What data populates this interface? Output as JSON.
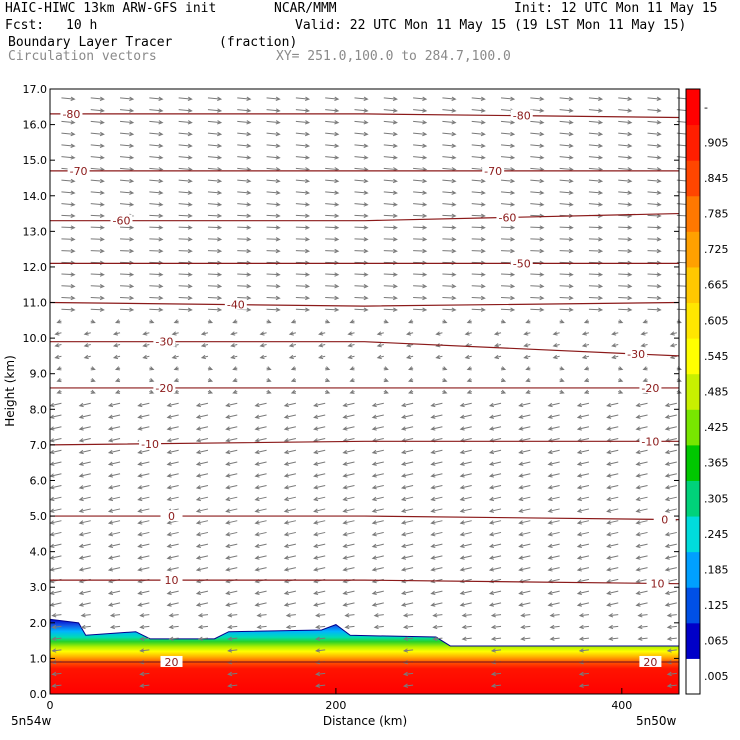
{
  "header": {
    "left_line1": "HAIC-HIWC 13km ARW-GFS init",
    "center_line1": "NCAR/MMM",
    "right_line1": "Init: 12 UTC Mon 11 May 15",
    "left_line2_label": "Fcst:",
    "left_line2_value": "10 h",
    "right_line2": "Valid: 22 UTC Mon 11 May 15 (19 LST Mon 11 May 15)",
    "field_name": "Boundary Layer Tracer",
    "field_unit": "(fraction)",
    "vector_name": "Circulation vectors",
    "xy_range": "XY= 251.0,100.0 to 284.7,100.0"
  },
  "colors": {
    "contour": "#8b1a1a",
    "arrow": "#7a7a7a",
    "colorbar": [
      "#ffffff",
      "#0000c8",
      "#0050e6",
      "#00a0ff",
      "#00dcdc",
      "#00d27a",
      "#00c800",
      "#78e600",
      "#c8f000",
      "#ffff00",
      "#ffe600",
      "#ffc800",
      "#ffa000",
      "#ff7800",
      "#ff4600",
      "#ff1e00",
      "#ff0000"
    ]
  },
  "chart_data": {
    "type": "heatmap",
    "xlabel": "Distance (km)",
    "ylabel": "Height (km)",
    "xlim": [
      0,
      440
    ],
    "ylim": [
      0,
      17
    ],
    "x_ticks": [
      {
        "value": 0,
        "label": "0"
      },
      {
        "value": 200,
        "label": "200"
      },
      {
        "value": 400,
        "label": "400"
      }
    ],
    "y_ticks": [
      "0.0",
      "1.0",
      "2.0",
      "3.0",
      "4.0",
      "5.0",
      "6.0",
      "7.0",
      "8.0",
      "9.0",
      "10.0",
      "11.0",
      "12.0",
      "13.0",
      "14.0",
      "15.0",
      "16.0",
      "17.0"
    ],
    "x_end_labels": {
      "left": "5n54w",
      "right": "5n50w"
    },
    "colorbar_labels": [
      ".005",
      ".065",
      ".125",
      ".185",
      ".245",
      ".305",
      ".365",
      ".425",
      ".485",
      ".545",
      ".605",
      ".665",
      ".725",
      ".785",
      ".845",
      ".905",
      "-"
    ],
    "tracer_top_profile": {
      "x": [
        0,
        20,
        25,
        60,
        70,
        115,
        125,
        190,
        200,
        210,
        270,
        280,
        440
      ],
      "height_km": [
        2.1,
        2.0,
        1.65,
        1.75,
        1.55,
        1.55,
        1.75,
        1.8,
        1.95,
        1.65,
        1.6,
        1.35,
        1.35
      ]
    },
    "contours": [
      {
        "label": "-80",
        "heights": [
          16.3,
          16.3,
          16.2
        ],
        "label_positions": [
          15,
          330
        ]
      },
      {
        "label": "-70",
        "heights": [
          14.7,
          14.7,
          14.7
        ],
        "label_positions": [
          20,
          310
        ]
      },
      {
        "label": "-60",
        "heights": [
          13.3,
          13.3,
          13.5
        ],
        "label_positions": [
          50,
          320
        ]
      },
      {
        "label": "-50",
        "heights": [
          12.1,
          12.1,
          12.1
        ],
        "label_positions": [
          330
        ]
      },
      {
        "label": "-40",
        "heights": [
          11.0,
          10.9,
          11.0
        ],
        "label_positions": [
          130
        ]
      },
      {
        "label": "-30",
        "heights": [
          9.9,
          9.9,
          9.5
        ],
        "label_positions": [
          80,
          410
        ]
      },
      {
        "label": "-20",
        "heights": [
          8.6,
          8.6,
          8.6
        ],
        "label_positions": [
          80,
          420
        ]
      },
      {
        "label": "-10",
        "heights": [
          7.0,
          7.1,
          7.1
        ],
        "label_positions": [
          70,
          420
        ]
      },
      {
        "label": "0",
        "heights": [
          5.0,
          5.0,
          4.9
        ],
        "label_positions": [
          85,
          430
        ]
      },
      {
        "label": "10",
        "heights": [
          3.2,
          3.2,
          3.1
        ],
        "label_positions": [
          85,
          425
        ]
      },
      {
        "label": "20",
        "heights": [
          0.9,
          0.9,
          0.9
        ],
        "label_positions": [
          85,
          420
        ]
      }
    ],
    "grid": false
  }
}
